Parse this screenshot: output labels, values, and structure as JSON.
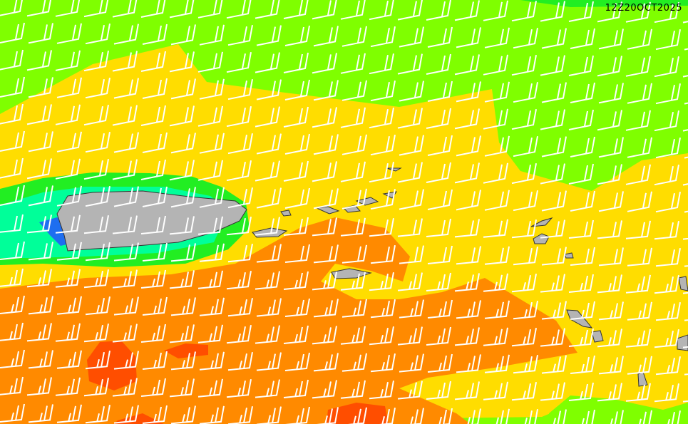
{
  "map": {
    "timestamp": "12Z20OCT2025",
    "colors": {
      "green": "#7fff00",
      "light_green": "#22ee22",
      "aqua": "#00ff99",
      "blue": "#1e6ef0",
      "yellow": "#ffdd00",
      "orange": "#ff8a00",
      "red_orange": "#ff4e00",
      "land": "#b4b4b4",
      "wind_barb": "#ffffff"
    },
    "icons": [
      "wind-barb",
      "island-landmass"
    ]
  }
}
